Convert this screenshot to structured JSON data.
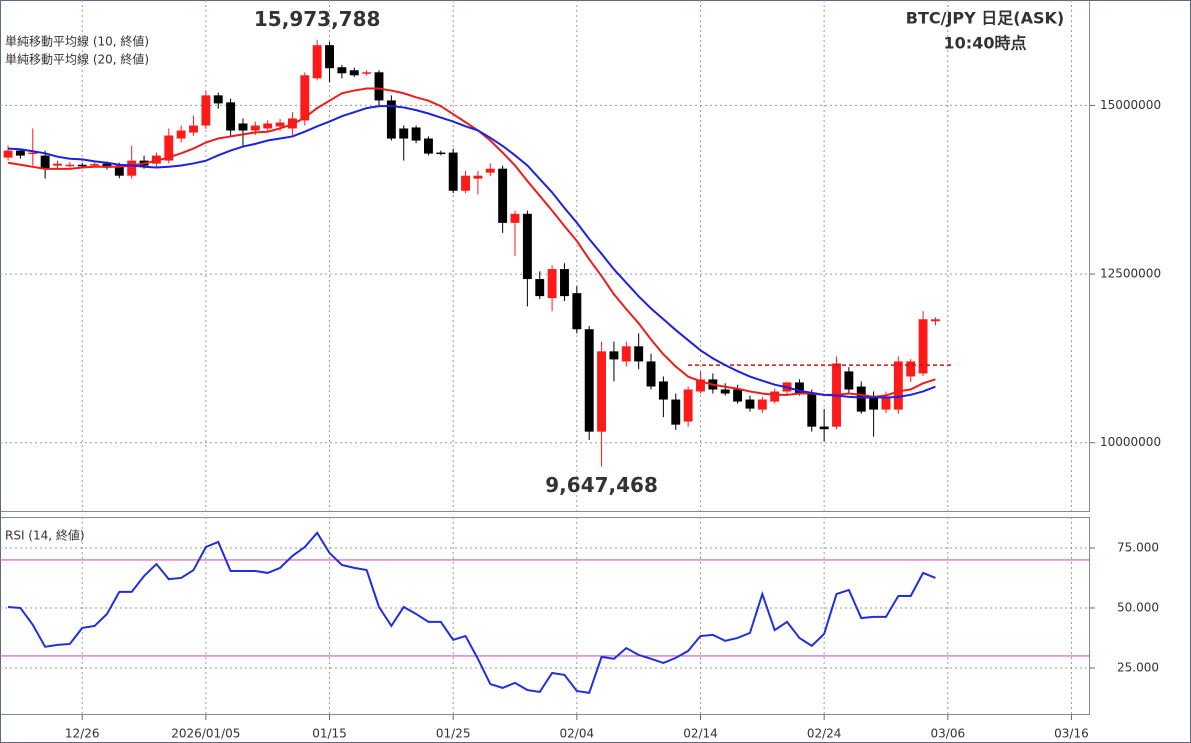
{
  "chart_data": [
    {
      "type": "candlestick",
      "title": "BTC/JPY 日足(ASK)",
      "subtitle": "10:40時点",
      "title_color": "#e8801a",
      "annotations": [
        {
          "text": "15,973,788",
          "color": "#e8141c"
        },
        {
          "text": "9,647,468",
          "color": "#1c2ad8"
        }
      ],
      "xlim": [
        -0.65,
        87.5
      ],
      "ylim": [
        8973000,
        16562500
      ],
      "yticks": [
        10000000,
        12500000,
        15000000
      ],
      "grid": true,
      "candles": {
        "up_color": "#ff1a1a",
        "down_color": "#000000",
        "open": [
          14226000,
          14330000,
          14286000,
          14256000,
          14107000,
          14110000,
          14120000,
          14110000,
          14137000,
          14107000,
          13958000,
          14182000,
          14137000,
          14182000,
          14509000,
          14598000,
          14702000,
          15149000,
          15045000,
          14732000,
          14628000,
          14658000,
          14688000,
          14658000,
          14777000,
          15402000,
          15893000,
          15566000,
          15521000,
          15476000,
          15491000,
          15074000,
          14658000,
          14673000,
          14509000,
          14301000,
          14301000,
          13735000,
          13914000,
          14003000,
          14062000,
          13259000,
          13393000,
          12426000,
          12143000,
          12574000,
          12217000,
          11682000,
          10164000,
          11354000,
          11205000,
          11429000,
          11205000,
          10908000,
          10640000,
          10313000,
          10759000,
          10938000,
          10789000,
          10789000,
          10640000,
          10491000,
          10610000,
          10759000,
          10893000,
          10729000,
          10240000,
          10238000,
          11057000,
          10833000,
          10685000,
          10491000,
          10491000,
          10982000,
          11027000,
          11800000
        ],
        "high": [
          14405000,
          14360000,
          14658000,
          14330000,
          14182000,
          14160000,
          14150000,
          14160000,
          14170000,
          14150000,
          14405000,
          14256000,
          14301000,
          14658000,
          14702000,
          14851000,
          15220000,
          15190000,
          15100000,
          14807000,
          14760000,
          14780000,
          14800000,
          14900000,
          15491000,
          15973788,
          15940000,
          15600000,
          15560000,
          15520000,
          15521000,
          15149000,
          14702000,
          14702000,
          14540000,
          14330000,
          14360000,
          14030000,
          14030000,
          14140000,
          14107000,
          13440000,
          13440000,
          12540000,
          12630000,
          12660000,
          12320000,
          11730000,
          11500000,
          11500000,
          11500000,
          11620000,
          11320000,
          10982000,
          10729000,
          10833000,
          11057000,
          11027000,
          10880000,
          10860000,
          10700000,
          10680000,
          10800000,
          10900000,
          10940000,
          10790000,
          10500000,
          11280000,
          11120000,
          10908000,
          10760000,
          10760000,
          11280000,
          11240000,
          11950000,
          11860000
        ],
        "low": [
          14182000,
          14210000,
          14107000,
          13914000,
          14062000,
          14080000,
          14090000,
          14080000,
          14050000,
          13920000,
          13914000,
          14062000,
          14080000,
          14140000,
          14450000,
          14550000,
          14650000,
          14950000,
          14554000,
          14405000,
          14560000,
          14600000,
          14620000,
          14554000,
          14702000,
          15370000,
          15340000,
          15400000,
          15420000,
          15440000,
          15000000,
          14479000,
          14182000,
          14440000,
          14260000,
          14260000,
          13700000,
          13700000,
          13680000,
          13950000,
          13110000,
          12768000,
          12020000,
          12130000,
          11949000,
          12100000,
          11620000,
          10040000,
          9647468,
          10908000,
          11130000,
          11090000,
          10789000,
          10380000,
          10190000,
          10238000,
          10729000,
          10729000,
          10700000,
          10580000,
          10461000,
          10440000,
          10580000,
          10700000,
          10700000,
          10164000,
          10020000,
          10200000,
          10729000,
          10430000,
          10090000,
          10440000,
          10430000,
          10900000,
          10990000,
          11740000
        ],
        "close": [
          14330000,
          14256000,
          14301000,
          14062000,
          14137000,
          14120000,
          14110000,
          14130000,
          14077000,
          13958000,
          14182000,
          14107000,
          14256000,
          14554000,
          14628000,
          14702000,
          15149000,
          15030000,
          14628000,
          14628000,
          14702000,
          14732000,
          14747000,
          14807000,
          15446000,
          15893000,
          15551000,
          15476000,
          15446000,
          15491000,
          15074000,
          14509000,
          14509000,
          14479000,
          14286000,
          14290000,
          13735000,
          13958000,
          13958000,
          14062000,
          13259000,
          13393000,
          12426000,
          12173000,
          12574000,
          12173000,
          11682000,
          10164000,
          11354000,
          11235000,
          11429000,
          11205000,
          10833000,
          10640000,
          10268000,
          10789000,
          10938000,
          10789000,
          10729000,
          10610000,
          10506000,
          10640000,
          10759000,
          10893000,
          10729000,
          10238000,
          10200000,
          11175000,
          10789000,
          10461000,
          10491000,
          10685000,
          11205000,
          11205000,
          11830000,
          11830000
        ]
      },
      "series": [
        {
          "name": "単純移動平均線 (10, 終値)",
          "color": "#ee1c1c",
          "values": [
            14150000,
            14120000,
            14090000,
            14060000,
            14060000,
            14060000,
            14080000,
            14090000,
            14090000,
            14090000,
            14110000,
            14140000,
            14180000,
            14230000,
            14290000,
            14360000,
            14450000,
            14510000,
            14540000,
            14570000,
            14600000,
            14610000,
            14660000,
            14720000,
            14820000,
            14960000,
            15070000,
            15180000,
            15220000,
            15250000,
            15250000,
            15220000,
            15180000,
            15120000,
            15070000,
            14990000,
            14870000,
            14750000,
            14630000,
            14480000,
            14300000,
            14110000,
            13880000,
            13660000,
            13440000,
            13210000,
            12990000,
            12720000,
            12470000,
            12200000,
            11980000,
            11770000,
            11530000,
            11310000,
            11130000,
            10980000,
            10910000,
            10860000,
            10830000,
            10800000,
            10760000,
            10730000,
            10710000,
            10710000,
            10730000,
            10730000,
            10710000,
            10710000,
            10730000,
            10710000,
            10680000,
            10700000,
            10760000,
            10790000,
            10880000,
            10940000
          ]
        },
        {
          "name": "単純移動平均線 (20, 終値)",
          "color": "#1c22e0",
          "values": [
            14360000,
            14350000,
            14320000,
            14290000,
            14240000,
            14210000,
            14200000,
            14170000,
            14150000,
            14120000,
            14110000,
            14090000,
            14080000,
            14090000,
            14110000,
            14140000,
            14180000,
            14260000,
            14330000,
            14390000,
            14430000,
            14480000,
            14510000,
            14540000,
            14610000,
            14690000,
            14760000,
            14840000,
            14900000,
            14960000,
            14990000,
            14990000,
            14970000,
            14930000,
            14880000,
            14820000,
            14760000,
            14690000,
            14630000,
            14520000,
            14400000,
            14260000,
            14110000,
            13910000,
            13710000,
            13480000,
            13260000,
            13020000,
            12800000,
            12570000,
            12370000,
            12170000,
            11990000,
            11830000,
            11670000,
            11520000,
            11370000,
            11250000,
            11150000,
            11060000,
            10980000,
            10920000,
            10860000,
            10820000,
            10770000,
            10740000,
            10710000,
            10700000,
            10680000,
            10670000,
            10670000,
            10670000,
            10680000,
            10710000,
            10760000,
            10830000
          ]
        }
      ],
      "reference_line": {
        "value": 11150000,
        "color": "#d01010"
      }
    },
    {
      "type": "line",
      "xlim": [
        -0.65,
        87.5
      ],
      "xticks": [
        {
          "value": 6,
          "label": "12/26"
        },
        {
          "value": 16,
          "label": "2026/01/05"
        },
        {
          "value": 26,
          "label": "01/15"
        },
        {
          "value": 36,
          "label": "01/25"
        },
        {
          "value": 46,
          "label": "02/04"
        },
        {
          "value": 56,
          "label": "02/14"
        },
        {
          "value": 66,
          "label": "02/24"
        },
        {
          "value": 76,
          "label": "03/06"
        },
        {
          "value": 86,
          "label": "03/16"
        }
      ],
      "ylim": [
        5.4,
        87.9
      ],
      "yticks": [
        {
          "value": 25,
          "label": "25.000"
        },
        {
          "value": 50,
          "label": "50.000"
        },
        {
          "value": 75,
          "label": "75.000"
        }
      ],
      "grid": true,
      "series": [
        {
          "name": "RSI (14, 終値)",
          "color": "#1f2fe0",
          "values": [
            50.4,
            50,
            43,
            33.8,
            34.6,
            35,
            41.7,
            42.5,
            47.5,
            56.7,
            56.7,
            63.3,
            68.3,
            62,
            62.5,
            65.8,
            75.4,
            77.5,
            65.4,
            65.4,
            65.4,
            64.6,
            66.7,
            71.7,
            75.4,
            81.3,
            72.9,
            67.9,
            66.7,
            65.8,
            50.4,
            42.5,
            50.4,
            47.5,
            44.2,
            44.2,
            36.7,
            38.3,
            28.8,
            18.3,
            16.7,
            18.8,
            15.8,
            15,
            22.9,
            22.1,
            15.4,
            14.6,
            29.6,
            28.8,
            33.3,
            30.4,
            28.8,
            27.1,
            29.2,
            32.1,
            38.3,
            38.8,
            36.3,
            37.5,
            39.6,
            55.8,
            40.8,
            44.2,
            37.5,
            34.2,
            39.2,
            55.8,
            57.5,
            45.8,
            46.3,
            46.3,
            55,
            55,
            64.6,
            62.5
          ]
        }
      ],
      "reference_lines": [
        70,
        30
      ],
      "reference_color": "#e050c0"
    }
  ]
}
